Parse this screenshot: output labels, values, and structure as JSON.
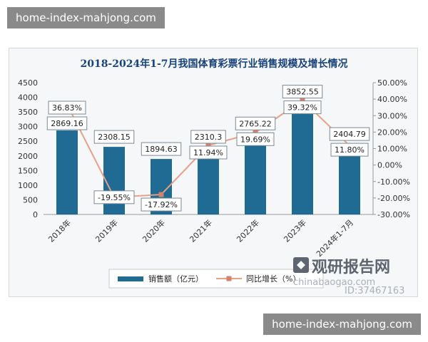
{
  "watermark": {
    "top": "home-index-mahjong.com",
    "bottom": "home-index-mahjong.com"
  },
  "logo": {
    "text": "观研报告网",
    "sub": "chinabaogao.com",
    "id": "ID:37467163"
  },
  "colors": {
    "bar": "#1f6b93",
    "line": "#e8a084",
    "marker": "#d4826a",
    "title": "#17427a"
  },
  "chart_data": {
    "type": "bar",
    "title": "2018-2024年1-7月我国体育彩票行业销售规模及增长情况",
    "categories": [
      "2018年",
      "2019年",
      "2020年",
      "2021年",
      "2022年",
      "2023年",
      "2024年1-7月"
    ],
    "series": [
      {
        "name": "销售额（亿元）",
        "type": "bar",
        "axis": "left",
        "values": [
          2869.16,
          2308.15,
          1894.63,
          2310.3,
          2765.22,
          3852.55,
          2404.79
        ],
        "labels": [
          "2869.16",
          "2308.15",
          "1894.63",
          "2310.3",
          "2765.22",
          "3852.55",
          "2404.79"
        ]
      },
      {
        "name": "同比增长（%）",
        "type": "line",
        "axis": "right",
        "values": [
          36.83,
          -19.55,
          -17.92,
          11.94,
          19.69,
          39.32,
          11.8
        ],
        "labels": [
          "36.83%",
          "-19.55%",
          "-17.92%",
          "11.94%",
          "19.69%",
          "39.32%",
          "11.80%"
        ]
      }
    ],
    "y_left": {
      "ylim": [
        0,
        4500
      ],
      "ticks": [
        "0",
        "500",
        "1000",
        "1500",
        "2000",
        "2500",
        "3000",
        "3500",
        "4000",
        "4500"
      ]
    },
    "y_right": {
      "ylim": [
        -30,
        50
      ],
      "ticks": [
        "-30.00%",
        "-20.00%",
        "-10.00%",
        "0.00%",
        "10.00%",
        "20.00%",
        "30.00%",
        "40.00%",
        "50.00%"
      ]
    },
    "legend": {
      "position": "bottom",
      "items": [
        "销售额（亿元）",
        "同比增长（%）"
      ]
    },
    "grid": false
  }
}
